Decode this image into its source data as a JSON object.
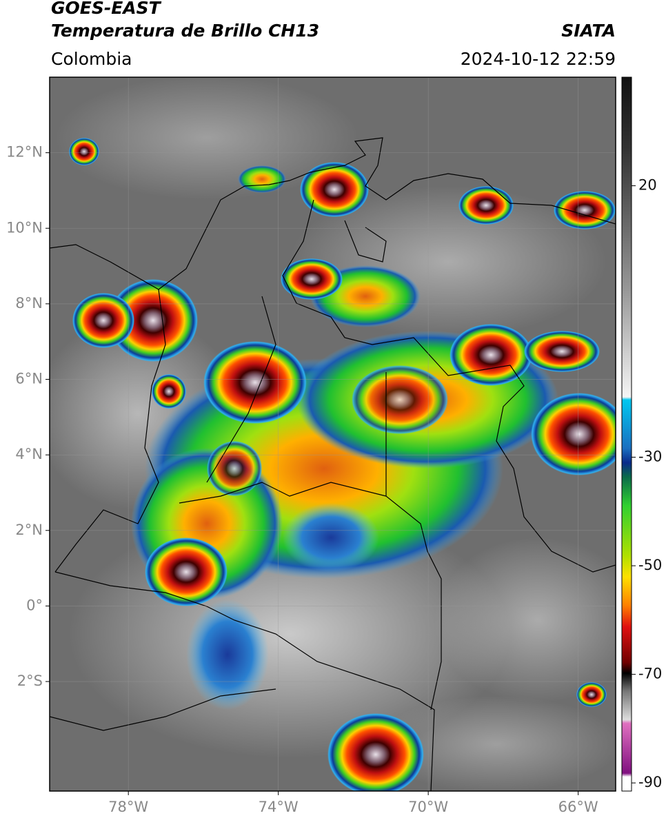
{
  "header": {
    "satellite": "GOES-EAST",
    "product": "Temperatura de Brillo CH13",
    "source": "SIATA",
    "region": "Colombia",
    "datetime": "2024-10-12 22:59"
  },
  "map": {
    "lonlim": [
      -80.1,
      -65
    ],
    "latlim": [
      -4.9,
      14
    ],
    "lonticks": [
      {
        "value": -78,
        "label": "78°W"
      },
      {
        "value": -74,
        "label": "74°W"
      },
      {
        "value": -70,
        "label": "70°W"
      },
      {
        "value": -66,
        "label": "66°W"
      }
    ],
    "latticks": [
      {
        "value": 12,
        "label": "12°N"
      },
      {
        "value": 10,
        "label": "10°N"
      },
      {
        "value": 8,
        "label": "8°N"
      },
      {
        "value": 6,
        "label": "6°N"
      },
      {
        "value": 4,
        "label": "4°N"
      },
      {
        "value": 2,
        "label": "2°N"
      },
      {
        "value": 0,
        "label": "0°"
      },
      {
        "value": -2,
        "label": "2°S"
      }
    ],
    "grid": true
  },
  "colorbar": {
    "lim": [
      -91.5,
      40
    ],
    "ticks": [
      20,
      -30,
      -50,
      -70,
      -90
    ]
  }
}
